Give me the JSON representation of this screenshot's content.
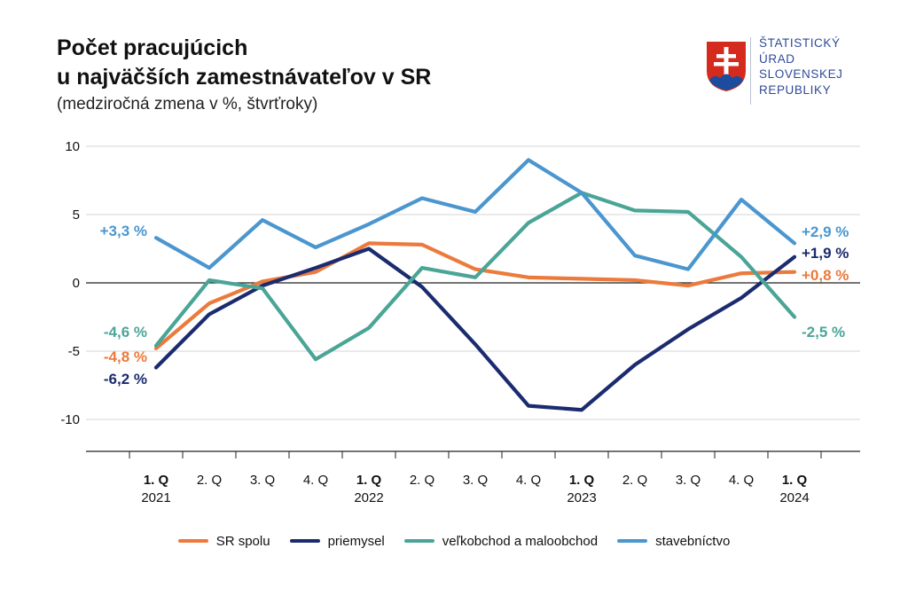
{
  "header": {
    "title_line1": "Počet pracujúcich",
    "title_line2": "u najväčších zamestnávateľov v SR",
    "subtitle": "(medziročná zmena v %, štvrťroky)"
  },
  "logo": {
    "icon": "slovak-coat-of-arms-icon",
    "lines": [
      "ŠTATISTICKÝ",
      "ÚRAD",
      "SLOVENSKEJ",
      "REPUBLIKY"
    ],
    "color": "#2e4a9a"
  },
  "chart_data": {
    "type": "line",
    "title": "Počet pracujúcich u najväčších zamestnávateľov v SR",
    "subtitle": "(medziročná zmena v %, štvrťroky)",
    "xlabel": "",
    "ylabel": "",
    "ylim": [
      -13,
      10
    ],
    "yticks": [
      10,
      5,
      0,
      -5,
      -10
    ],
    "ytick_labels": [
      "10",
      "5",
      "0",
      "-5",
      "-10"
    ],
    "grid": "horizontal",
    "categories": [
      "1. Q",
      "2. Q",
      "3. Q",
      "4. Q",
      "1. Q",
      "2. Q",
      "3. Q",
      "4. Q",
      "1. Q",
      "2. Q",
      "3. Q",
      "4. Q",
      "1. Q"
    ],
    "category_bold": [
      true,
      false,
      false,
      false,
      true,
      false,
      false,
      false,
      true,
      false,
      false,
      false,
      true
    ],
    "year_labels": [
      {
        "index": 0,
        "label": "2021"
      },
      {
        "index": 4,
        "label": "2022"
      },
      {
        "index": 8,
        "label": "2023"
      },
      {
        "index": 12,
        "label": "2024"
      }
    ],
    "series": [
      {
        "name": "SR spolu",
        "color": "#ec7a3c",
        "values": [
          -4.8,
          -1.5,
          0.1,
          0.8,
          2.9,
          2.8,
          1.0,
          0.4,
          0.3,
          0.2,
          -0.2,
          0.7,
          0.8
        ],
        "start_label": "-4,8 %",
        "end_label": "+0,8 %"
      },
      {
        "name": "priemysel",
        "color": "#1b2b6f",
        "values": [
          -6.2,
          -2.3,
          -0.2,
          1.1,
          2.5,
          -0.3,
          -4.5,
          -9.0,
          -9.3,
          -6.0,
          -3.4,
          -1.1,
          1.9
        ],
        "start_label": "-6,2 %",
        "end_label": "+1,9 %"
      },
      {
        "name": "veľkobchod a maloobchod",
        "color": "#4aa597",
        "values": [
          -4.6,
          0.2,
          -0.4,
          -5.6,
          -3.3,
          1.1,
          0.4,
          4.4,
          6.6,
          5.3,
          5.2,
          1.9,
          -2.5
        ],
        "start_label": "-4,6 %",
        "end_label": "-2,5 %"
      },
      {
        "name": "stavebníctvo",
        "color": "#4b96cf",
        "values": [
          3.3,
          1.1,
          4.6,
          2.6,
          4.3,
          6.2,
          5.2,
          9.0,
          6.6,
          2.0,
          1.0,
          6.1,
          2.9
        ],
        "start_label": "+3,3 %",
        "end_label": "+2,9 %"
      }
    ],
    "legend_position": "bottom-center"
  }
}
